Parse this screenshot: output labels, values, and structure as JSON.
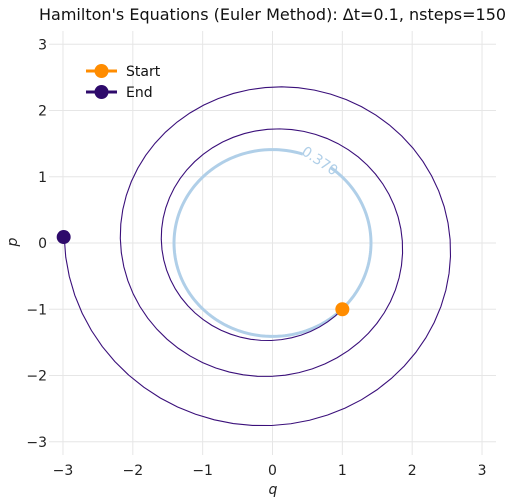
{
  "chart_data": {
    "type": "line",
    "title": "Hamilton's Equations (Euler Method): Δt=0.1, nsteps=150",
    "xlabel": "q",
    "ylabel": "p",
    "xlim": [
      -3.2,
      3.2
    ],
    "ylim": [
      -3.2,
      3.2
    ],
    "x_ticks": [
      -3,
      -2,
      -1,
      0,
      1,
      2,
      3
    ],
    "y_ticks": [
      -3,
      -2,
      -1,
      0,
      1,
      2,
      3
    ],
    "grid": true,
    "legend_position": "top-left",
    "series": [
      {
        "name": "Start",
        "type": "marker",
        "color": "#ff8c00",
        "points": [
          {
            "x": 1.0,
            "y": -1.0
          }
        ]
      },
      {
        "name": "End",
        "type": "marker",
        "color": "#2e0a6b",
        "points": [
          {
            "x": -2.99,
            "y": 0.09
          }
        ]
      }
    ],
    "trajectory": {
      "color": "#3a0f7a",
      "dt": 0.1,
      "nsteps": 150,
      "start": {
        "q": 1.0,
        "p": -1.0
      }
    },
    "contour": {
      "level_label": "0.370",
      "color": "#b0cfe8",
      "center": {
        "q": 0,
        "p": 0
      },
      "radius": 1.41
    }
  }
}
